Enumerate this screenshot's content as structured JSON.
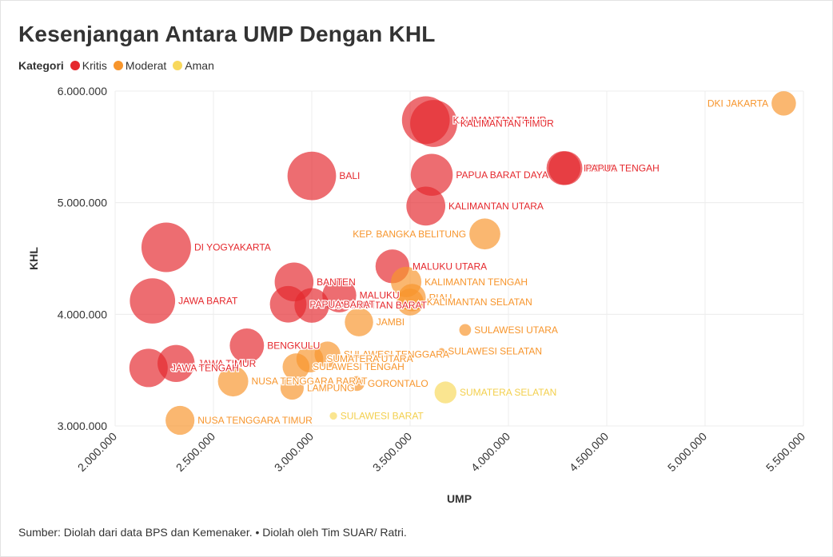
{
  "header": {
    "title": "Kesenjangan Antara UMP Dengan KHL",
    "legend_label": "Kategori",
    "legend": [
      {
        "name": "Kritis",
        "color": "#e5282d"
      },
      {
        "name": "Moderat",
        "color": "#f7952c"
      },
      {
        "name": "Aman",
        "color": "#f8d85c"
      }
    ]
  },
  "footer": {
    "source": "Sumber: Diolah dari data BPS dan Kemenaker. • Diolah oleh Tim SUAR/ Ratri."
  },
  "chart_data": {
    "type": "scatter",
    "xlabel": "UMP",
    "ylabel": "KHL",
    "xlim": [
      2000000,
      5500000
    ],
    "ylim": [
      3000000,
      6000000
    ],
    "xticks": [
      2000000,
      2500000,
      3000000,
      3500000,
      4000000,
      4500000,
      5000000,
      5500000
    ],
    "xtick_labels": [
      "2.000.000",
      "2.500.000",
      "3.000.000",
      "3.500.000",
      "4.000.000",
      "4.500.000",
      "5.000.000",
      "5.500.000"
    ],
    "yticks": [
      3000000,
      4000000,
      5000000,
      6000000
    ],
    "ytick_labels": [
      "3.000.000",
      "4.000.000",
      "5.000.000",
      "6.000.000"
    ],
    "grid": true,
    "size_encoding": "gap between KHL and UMP",
    "points": [
      {
        "name": "DKI JAKARTA",
        "x": 5400000,
        "y": 5890000,
        "category": "Moderat",
        "gap": 490000
      },
      {
        "name": "KALIMANTAN TIMUR",
        "x": 3580000,
        "y": 5740000,
        "category": "Kritis",
        "gap": 2160000
      },
      {
        "name": "KALIMANTAN TIMUR",
        "x": 3620000,
        "y": 5710000,
        "category": "Kritis",
        "gap": 2090000
      },
      {
        "name": "BALI",
        "x": 3000000,
        "y": 5240000,
        "category": "Kritis",
        "gap": 2240000
      },
      {
        "name": "PAPUA",
        "x": 4280000,
        "y": 5310000,
        "category": "Kritis",
        "gap": 1030000
      },
      {
        "name": "PAPUA TENGAH",
        "x": 4290000,
        "y": 5310000,
        "category": "Kritis",
        "gap": 1020000
      },
      {
        "name": "PAPUA BARAT DAYA",
        "x": 3610000,
        "y": 5250000,
        "category": "Kritis",
        "gap": 1640000
      },
      {
        "name": "KALIMANTAN UTARA",
        "x": 3580000,
        "y": 4970000,
        "category": "Kritis",
        "gap": 1390000
      },
      {
        "name": "KEP. BANGKA BELITUNG",
        "x": 3880000,
        "y": 4720000,
        "category": "Moderat",
        "gap": 840000
      },
      {
        "name": "DI YOGYAKARTA",
        "x": 2260000,
        "y": 4600000,
        "category": "Kritis",
        "gap": 2340000
      },
      {
        "name": "MALUKU UTARA",
        "x": 3410000,
        "y": 4430000,
        "category": "Kritis",
        "gap": 1020000
      },
      {
        "name": "KALIMANTAN TENGAH",
        "x": 3480000,
        "y": 4290000,
        "category": "Moderat",
        "gap": 810000
      },
      {
        "name": "BANTEN",
        "x": 2910000,
        "y": 4290000,
        "category": "Kritis",
        "gap": 1380000
      },
      {
        "name": "MALUKU",
        "x": 3140000,
        "y": 4170000,
        "category": "Kritis",
        "gap": 1030000
      },
      {
        "name": "RIAU",
        "x": 3510000,
        "y": 4150000,
        "category": "Moderat",
        "gap": 640000
      },
      {
        "name": "JAWA BARAT",
        "x": 2190000,
        "y": 4120000,
        "category": "Kritis",
        "gap": 1930000
      },
      {
        "name": "KALIMANTAN SELATAN",
        "x": 3500000,
        "y": 4110000,
        "category": "Moderat",
        "gap": 610000
      },
      {
        "name": "KALIMANTAN BARAT",
        "x": 3000000,
        "y": 4080000,
        "category": "Kritis",
        "gap": 1080000
      },
      {
        "name": "PAPUA BARAT",
        "x": 2880000,
        "y": 4090000,
        "category": "Kritis",
        "gap": 1210000
      },
      {
        "name": "JAMBI",
        "x": 3240000,
        "y": 3930000,
        "category": "Moderat",
        "gap": 690000
      },
      {
        "name": "SULAWESI UTARA",
        "x": 3780000,
        "y": 3860000,
        "category": "Moderat",
        "gap": 80000
      },
      {
        "name": "BENGKULU",
        "x": 2670000,
        "y": 3720000,
        "category": "Kritis",
        "gap": 1050000
      },
      {
        "name": "SULAWESI SELATAN",
        "x": 3660000,
        "y": 3670000,
        "category": "Moderat",
        "gap": 10000
      },
      {
        "name": "SULAWESI TENGGARA",
        "x": 3080000,
        "y": 3640000,
        "category": "Moderat",
        "gap": 560000
      },
      {
        "name": "SUMATERA UTARA",
        "x": 2990000,
        "y": 3600000,
        "category": "Moderat",
        "gap": 610000
      },
      {
        "name": "JAWA TIMUR",
        "x": 2310000,
        "y": 3560000,
        "category": "Kritis",
        "gap": 1250000
      },
      {
        "name": "SULAWESI TENGAH",
        "x": 2920000,
        "y": 3530000,
        "category": "Moderat",
        "gap": 610000
      },
      {
        "name": "JAWA TENGAH",
        "x": 2170000,
        "y": 3520000,
        "category": "Kritis",
        "gap": 1350000
      },
      {
        "name": "NUSA TENGGARA BARAT",
        "x": 2600000,
        "y": 3400000,
        "category": "Moderat",
        "gap": 800000
      },
      {
        "name": "GORONTALO",
        "x": 3230000,
        "y": 3380000,
        "category": "Moderat",
        "gap": 150000
      },
      {
        "name": "LAMPUNG",
        "x": 2900000,
        "y": 3340000,
        "category": "Moderat",
        "gap": 440000
      },
      {
        "name": "SUMATERA SELATAN",
        "x": 3680000,
        "y": 3300000,
        "category": "Aman",
        "gap": -380000
      },
      {
        "name": "NUSA TENGGARA TIMUR",
        "x": 2330000,
        "y": 3050000,
        "category": "Moderat",
        "gap": 720000
      },
      {
        "name": "SULAWESI BARAT",
        "x": 3110000,
        "y": 3090000,
        "category": "Aman",
        "gap": -20000
      }
    ]
  }
}
